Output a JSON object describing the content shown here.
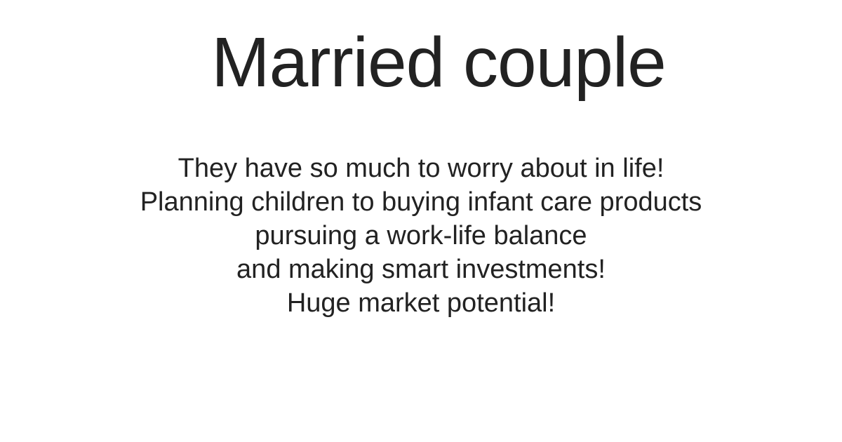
{
  "slide": {
    "title": "Married couple",
    "lines": [
      "They have so much to worry about in life!",
      "Planning children to buying infant care products",
      "pursuing a work-life balance",
      "and making smart investments!",
      "Huge market potential!"
    ]
  }
}
